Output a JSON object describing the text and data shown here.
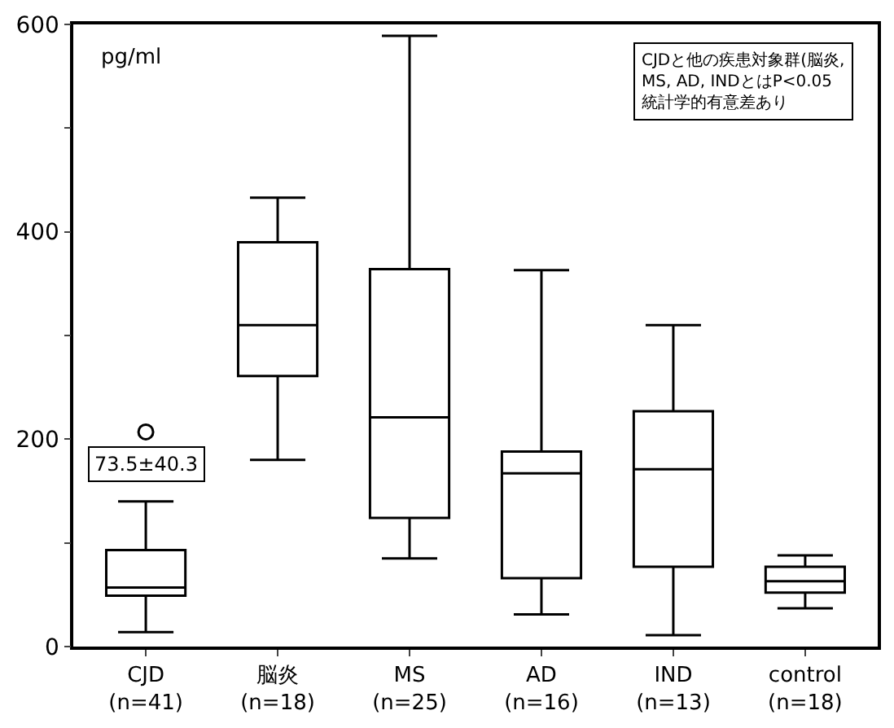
{
  "chart_data": {
    "type": "box",
    "ylabel": "pg/ml",
    "categories": [
      "CJD\n(n=41)",
      "脳炎\n(n=18)",
      "MS\n(n=25)",
      "AD\n(n=16)",
      "IND\n(n=13)",
      "control\n(n=18)"
    ],
    "boxes": [
      {
        "low": 14,
        "q1": 49,
        "median": 57,
        "q3": 93,
        "high": 140,
        "outliers": [
          207
        ]
      },
      {
        "low": 180,
        "q1": 261,
        "median": 310,
        "q3": 390,
        "high": 433
      },
      {
        "low": 85,
        "q1": 124,
        "median": 221,
        "q3": 364,
        "high": 589
      },
      {
        "low": 31,
        "q1": 66,
        "median": 167,
        "q3": 188,
        "high": 363
      },
      {
        "low": 11,
        "q1": 77,
        "median": 171,
        "q3": 227,
        "high": 310
      },
      {
        "low": 37,
        "q1": 52,
        "median": 63,
        "q3": 77,
        "high": 88
      }
    ],
    "color": "#000000",
    "ylim": [
      0,
      600
    ],
    "yticks": [
      0,
      {
        "value": 100,
        "label": null
      },
      200,
      {
        "value": 300,
        "label": null
      },
      400,
      {
        "value": 500,
        "label": null
      },
      600
    ],
    "grid": false,
    "annotations": [
      "CJDと他の疾患対象群(脳炎,\nMS, AD, INDとはP<0.05\n統計学的有意差あり",
      "73.5±40.3"
    ]
  }
}
